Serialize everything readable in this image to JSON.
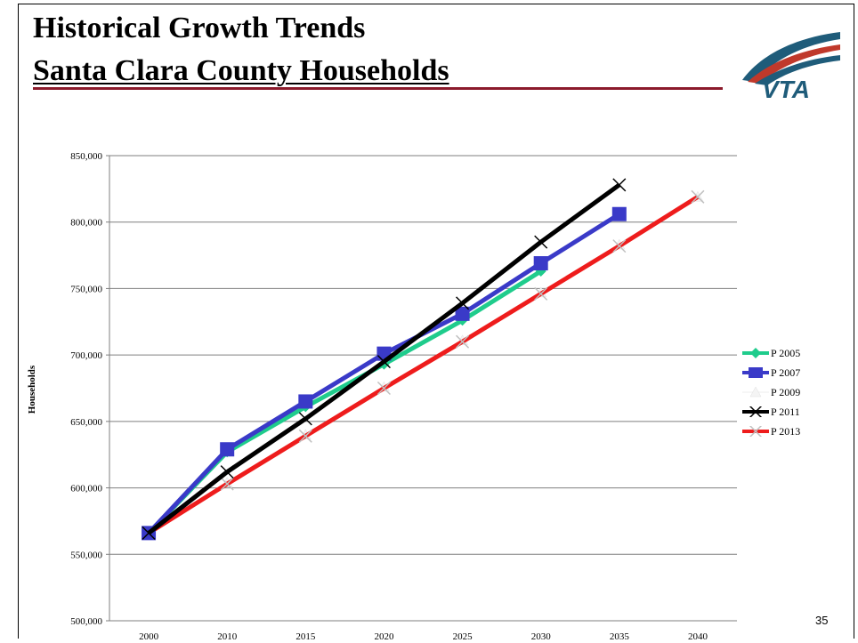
{
  "slide": {
    "title_line1": "Historical Growth Trends",
    "title_line2": "Santa Clara County Households",
    "page_number": "35",
    "logo_text": "VTA"
  },
  "colors": {
    "title_rule": "#8b1a2b",
    "logo_teal": "#1f5c7a",
    "logo_red": "#c0392b"
  },
  "chart_data": {
    "type": "line",
    "title": "",
    "xlabel": "",
    "ylabel": "Households",
    "categories": [
      "2000",
      "2010",
      "2015",
      "2020",
      "2025",
      "2030",
      "2035",
      "2040"
    ],
    "ylim": [
      500000,
      850000
    ],
    "ytick_labels": [
      "500,000",
      "550,000",
      "600,000",
      "650,000",
      "700,000",
      "750,000",
      "800,000",
      "850,000"
    ],
    "grid": true,
    "legend_position": "right",
    "series": [
      {
        "name": "P 2005",
        "color": "#1fcc8c",
        "marker": "diamond",
        "values": [
          566000,
          627000,
          661000,
          693000,
          726000,
          763000,
          null,
          null
        ]
      },
      {
        "name": "P 2007",
        "color": "#3a3ac8",
        "marker": "square",
        "values": [
          566000,
          629000,
          665000,
          701000,
          731000,
          769000,
          806000,
          null
        ]
      },
      {
        "name": "P 2009",
        "color": "#f4f4f4",
        "marker": "triangle",
        "values": [
          566000,
          604000,
          640000,
          676000,
          711000,
          747000,
          783000,
          819000
        ]
      },
      {
        "name": "P 2011",
        "color": "#000000",
        "marker": "x",
        "values": [
          566000,
          612000,
          652000,
          695000,
          739000,
          785000,
          828000,
          null
        ]
      },
      {
        "name": "P 2013",
        "color": "#ee1c1c",
        "marker": "x",
        "values": [
          566000,
          603000,
          639000,
          675000,
          710000,
          746000,
          782000,
          819000
        ]
      }
    ]
  }
}
